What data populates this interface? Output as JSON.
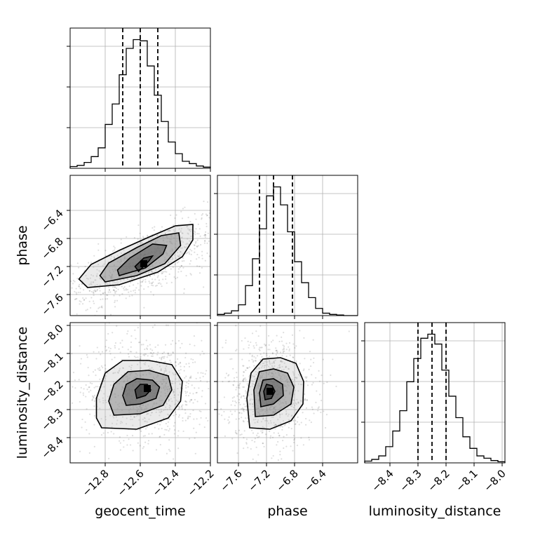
{
  "chart_data": {
    "type": "corner",
    "parameters": [
      "geocent_time",
      "phase",
      "luminosity_distance"
    ],
    "axis_labels": {
      "geocent_time": "geocent_time",
      "phase": "phase",
      "luminosity_distance": "luminosity_distance"
    },
    "ranges": {
      "geocent_time": [
        -13.0,
        -12.2
      ],
      "phase": [
        -7.9,
        -5.9
      ],
      "luminosity_distance": [
        -8.49,
        -7.99
      ]
    },
    "ticks": {
      "geocent_time": [
        -12.8,
        -12.6,
        -12.4,
        -12.2
      ],
      "phase": [
        -7.6,
        -7.2,
        -6.8,
        -6.4
      ],
      "luminosity_distance": [
        -8.4,
        -8.3,
        -8.2,
        -8.1,
        -8.0
      ]
    },
    "tick_labels": {
      "geocent_time": [
        "−12.8",
        "−12.6",
        "−12.4",
        "−12.2"
      ],
      "phase": [
        "−7.6",
        "−7.2",
        "−6.8",
        "−6.4"
      ],
      "luminosity_distance": [
        "−8.4",
        "−8.3",
        "−8.2",
        "−8.1",
        "−8.0"
      ]
    },
    "quantiles": {
      "geocent_time": [
        -12.7,
        -12.6,
        -12.5
      ],
      "phase": [
        -7.3,
        -7.1,
        -6.83
      ],
      "luminosity_distance": [
        -8.3,
        -8.25,
        -8.2
      ]
    },
    "histograms": {
      "geocent_time": {
        "edges": [
          -13.0,
          -12.96,
          -12.92,
          -12.88,
          -12.84,
          -12.8,
          -12.76,
          -12.72,
          -12.68,
          -12.64,
          -12.6,
          -12.56,
          -12.52,
          -12.48,
          -12.44,
          -12.4,
          -12.36,
          -12.32,
          -12.28,
          -12.24,
          -12.2
        ],
        "counts": [
          3,
          5,
          10,
          20,
          35,
          75,
          110,
          160,
          205,
          220,
          218,
          175,
          125,
          80,
          45,
          25,
          12,
          8,
          4,
          2
        ]
      },
      "phase": {
        "edges": [
          -7.9,
          -7.8,
          -7.7,
          -7.6,
          -7.5,
          -7.4,
          -7.3,
          -7.2,
          -7.1,
          -7.0,
          -6.9,
          -6.8,
          -6.7,
          -6.6,
          -6.5,
          -6.4,
          -6.3,
          -6.2,
          -6.1,
          -6.0,
          -5.9
        ],
        "counts": [
          2,
          4,
          8,
          18,
          50,
          95,
          145,
          200,
          215,
          185,
          140,
          90,
          55,
          30,
          12,
          4,
          2,
          1,
          0,
          0
        ]
      },
      "luminosity_distance": {
        "edges": [
          -8.49,
          -8.465,
          -8.44,
          -8.415,
          -8.39,
          -8.365,
          -8.34,
          -8.315,
          -8.29,
          -8.265,
          -8.24,
          -8.215,
          -8.19,
          -8.165,
          -8.14,
          -8.115,
          -8.09,
          -8.065,
          -8.04,
          -8.015,
          -7.99
        ],
        "counts": [
          3,
          6,
          12,
          28,
          55,
          90,
          140,
          180,
          215,
          222,
          205,
          160,
          115,
          78,
          45,
          25,
          12,
          8,
          4,
          2
        ]
      }
    },
    "pairs": [
      {
        "x": "geocent_time",
        "y": "phase",
        "center": [
          -12.58,
          -7.16
        ],
        "contours": [
          [
            [
              -12.61,
              -7.27
            ],
            [
              -12.55,
              -7.12
            ],
            [
              -12.53,
              -7.05
            ],
            [
              -12.58,
              -7.08
            ],
            [
              -12.63,
              -7.2
            ]
          ],
          [
            [
              -12.72,
              -7.33
            ],
            [
              -12.57,
              -7.22
            ],
            [
              -12.47,
              -7.02
            ],
            [
              -12.45,
              -6.9
            ],
            [
              -12.53,
              -6.88
            ],
            [
              -12.66,
              -7.08
            ],
            [
              -12.73,
              -7.25
            ]
          ],
          [
            [
              -12.8,
              -7.42
            ],
            [
              -12.62,
              -7.33
            ],
            [
              -12.46,
              -7.16
            ],
            [
              -12.37,
              -6.9
            ],
            [
              -12.38,
              -6.72
            ],
            [
              -12.48,
              -6.76
            ],
            [
              -12.62,
              -6.93
            ],
            [
              -12.78,
              -7.15
            ],
            [
              -12.83,
              -7.33
            ]
          ],
          [
            [
              -12.9,
              -7.5
            ],
            [
              -12.72,
              -7.46
            ],
            [
              -12.5,
              -7.28
            ],
            [
              -12.36,
              -7.06
            ],
            [
              -12.3,
              -6.82
            ],
            [
              -12.3,
              -6.6
            ],
            [
              -12.4,
              -6.62
            ],
            [
              -12.55,
              -6.78
            ],
            [
              -12.72,
              -6.97
            ],
            [
              -12.88,
              -7.17
            ],
            [
              -12.95,
              -7.38
            ]
          ]
        ]
      },
      {
        "x": "geocent_time",
        "y": "luminosity_distance",
        "center": [
          -12.56,
          -8.225
        ],
        "contours": [
          [
            [
              -12.62,
              -8.26
            ],
            [
              -12.57,
              -8.25
            ],
            [
              -12.54,
              -8.23
            ],
            [
              -12.56,
              -8.21
            ],
            [
              -12.6,
              -8.21
            ],
            [
              -12.63,
              -8.23
            ]
          ],
          [
            [
              -12.68,
              -8.285
            ],
            [
              -12.6,
              -8.28
            ],
            [
              -12.51,
              -8.26
            ],
            [
              -12.49,
              -8.22
            ],
            [
              -12.53,
              -8.195
            ],
            [
              -12.62,
              -8.19
            ],
            [
              -12.68,
              -8.21
            ],
            [
              -12.7,
              -8.25
            ]
          ],
          [
            [
              -12.75,
              -8.32
            ],
            [
              -12.6,
              -8.315
            ],
            [
              -12.47,
              -8.285
            ],
            [
              -12.42,
              -8.23
            ],
            [
              -12.44,
              -8.18
            ],
            [
              -12.55,
              -8.16
            ],
            [
              -12.67,
              -8.165
            ],
            [
              -12.75,
              -8.21
            ],
            [
              -12.78,
              -8.27
            ]
          ],
          [
            [
              -12.82,
              -8.365
            ],
            [
              -12.62,
              -8.37
            ],
            [
              -12.44,
              -8.33
            ],
            [
              -12.37,
              -8.27
            ],
            [
              -12.36,
              -8.2
            ],
            [
              -12.42,
              -8.14
            ],
            [
              -12.55,
              -8.125
            ],
            [
              -12.7,
              -8.125
            ],
            [
              -12.8,
              -8.17
            ],
            [
              -12.85,
              -8.26
            ],
            [
              -12.85,
              -8.33
            ]
          ]
        ]
      },
      {
        "x": "phase",
        "y": "luminosity_distance",
        "center": [
          -7.15,
          -8.235
        ],
        "contours": [
          [
            [
              -7.22,
              -8.265
            ],
            [
              -7.13,
              -8.26
            ],
            [
              -7.08,
              -8.235
            ],
            [
              -7.12,
              -8.215
            ],
            [
              -7.2,
              -8.21
            ],
            [
              -7.24,
              -8.235
            ]
          ],
          [
            [
              -7.28,
              -8.29
            ],
            [
              -7.1,
              -8.28
            ],
            [
              -6.96,
              -8.25
            ],
            [
              -6.97,
              -8.21
            ],
            [
              -7.1,
              -8.19
            ],
            [
              -7.25,
              -8.195
            ],
            [
              -7.3,
              -8.24
            ]
          ],
          [
            [
              -7.36,
              -8.325
            ],
            [
              -7.1,
              -8.32
            ],
            [
              -6.85,
              -8.28
            ],
            [
              -6.81,
              -8.22
            ],
            [
              -6.9,
              -8.17
            ],
            [
              -7.1,
              -8.155
            ],
            [
              -7.3,
              -8.165
            ],
            [
              -7.38,
              -8.23
            ]
          ],
          [
            [
              -7.44,
              -8.365
            ],
            [
              -7.15,
              -8.37
            ],
            [
              -6.85,
              -8.34
            ],
            [
              -6.68,
              -8.28
            ],
            [
              -6.67,
              -8.2
            ],
            [
              -6.78,
              -8.135
            ],
            [
              -7.0,
              -8.115
            ],
            [
              -7.25,
              -8.12
            ],
            [
              -7.42,
              -8.17
            ],
            [
              -7.48,
              -8.26
            ]
          ]
        ]
      }
    ]
  }
}
